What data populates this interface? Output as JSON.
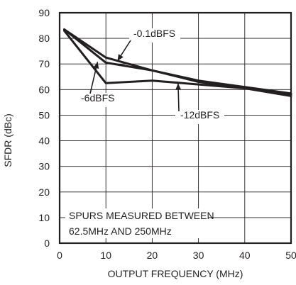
{
  "chart_data": {
    "type": "line",
    "title": "",
    "xlabel": "OUTPUT FREQUENCY (MHz)",
    "ylabel": "SFDR (dBc)",
    "xlim": [
      0,
      50
    ],
    "ylim": [
      0,
      90
    ],
    "x_ticks": [
      0,
      10,
      20,
      30,
      40,
      50
    ],
    "y_ticks": [
      0,
      10,
      20,
      30,
      40,
      50,
      60,
      70,
      80,
      90
    ],
    "grid": true,
    "series": [
      {
        "name": "-0.1dBFS",
        "x": [
          1,
          10,
          20,
          30,
          40,
          50
        ],
        "y": [
          83.5,
          72.5,
          67.5,
          63.5,
          61,
          58.5
        ]
      },
      {
        "name": "-6dBFS",
        "x": [
          1,
          10,
          20,
          30,
          40,
          50
        ],
        "y": [
          83.5,
          70.5,
          67.5,
          63,
          60.5,
          58
        ]
      },
      {
        "name": "-12dBFS",
        "x": [
          1,
          10,
          20,
          30,
          40,
          50
        ],
        "y": [
          83,
          62.5,
          63.5,
          62,
          60.5,
          57.5
        ]
      }
    ],
    "annotations": [
      {
        "text": "-0.1dBFS"
      },
      {
        "text": "-6dBFS"
      },
      {
        "text": "-12dBFS"
      }
    ],
    "note": {
      "line1": "SPURS MEASURED BETWEEN",
      "line2": "62.5MHz AND 250MHz"
    },
    "colors": {
      "line": "#231f20",
      "grid": "#231f20",
      "text": "#231f20"
    }
  }
}
